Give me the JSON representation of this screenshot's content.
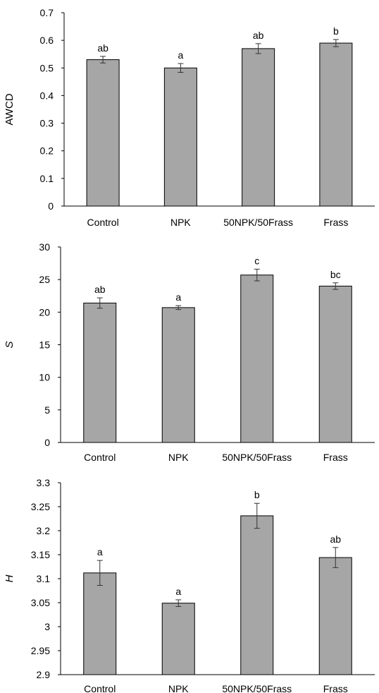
{
  "chart_data": [
    {
      "type": "bar",
      "ylabel": "AWCD",
      "ylabel_italic": false,
      "categories": [
        "Control",
        "NPK",
        "50NPK/50Frass",
        "Frass"
      ],
      "values": [
        0.53,
        0.5,
        0.57,
        0.59
      ],
      "errors": [
        0.012,
        0.016,
        0.018,
        0.013
      ],
      "significance": [
        "ab",
        "a",
        "ab",
        "b"
      ],
      "ylim": [
        0,
        0.7
      ],
      "yticks": [
        "0",
        "0.1",
        "0.2",
        "0.3",
        "0.4",
        "0.5",
        "0.6",
        "0.7"
      ],
      "bar_color": "#a6a6a6"
    },
    {
      "type": "bar",
      "ylabel": "S",
      "ylabel_italic": true,
      "categories": [
        "Control",
        "NPK",
        "50NPK/50Frass",
        "Frass"
      ],
      "values": [
        21.4,
        20.7,
        25.7,
        24.0
      ],
      "errors": [
        0.8,
        0.3,
        0.9,
        0.5
      ],
      "significance": [
        "ab",
        "a",
        "c",
        "bc"
      ],
      "ylim": [
        0,
        30
      ],
      "yticks": [
        "0",
        "5",
        "10",
        "15",
        "20",
        "25",
        "30"
      ],
      "bar_color": "#a6a6a6"
    },
    {
      "type": "bar",
      "ylabel": "H",
      "ylabel_italic": true,
      "categories": [
        "Control",
        "NPK",
        "50NPK/50Frass",
        "Frass"
      ],
      "values": [
        3.112,
        3.049,
        3.231,
        3.144
      ],
      "errors": [
        0.026,
        0.007,
        0.026,
        0.021
      ],
      "significance": [
        "a",
        "a",
        "b",
        "ab"
      ],
      "ylim": [
        2.9,
        3.3
      ],
      "yticks": [
        "2.9",
        "2.95",
        "3",
        "3.05",
        "3.1",
        "3.15",
        "3.2",
        "3.25",
        "3.3"
      ],
      "bar_color": "#a6a6a6"
    }
  ]
}
